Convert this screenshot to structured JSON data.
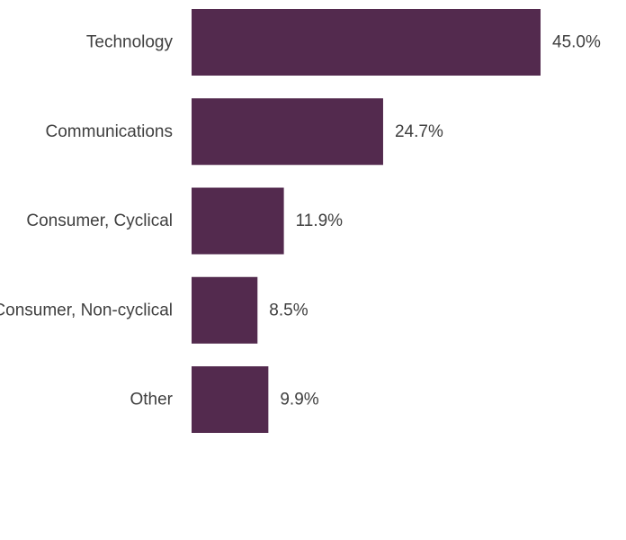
{
  "chart_data": {
    "type": "bar",
    "orientation": "horizontal",
    "categories": [
      "Technology",
      "Communications",
      "Consumer, Cyclical",
      "Consumer, Non-cyclical",
      "Other"
    ],
    "values": [
      45.0,
      24.7,
      11.9,
      8.5,
      9.9
    ],
    "value_labels": [
      "45.0%",
      "24.7%",
      "11.9%",
      "8.5%",
      "9.9%"
    ],
    "title": "",
    "xlabel": "",
    "ylabel": "",
    "xlim": [
      0,
      45
    ],
    "grid": false,
    "legend": "none",
    "bar_color": "#532a4e",
    "text_color": "#3f3f3f"
  }
}
